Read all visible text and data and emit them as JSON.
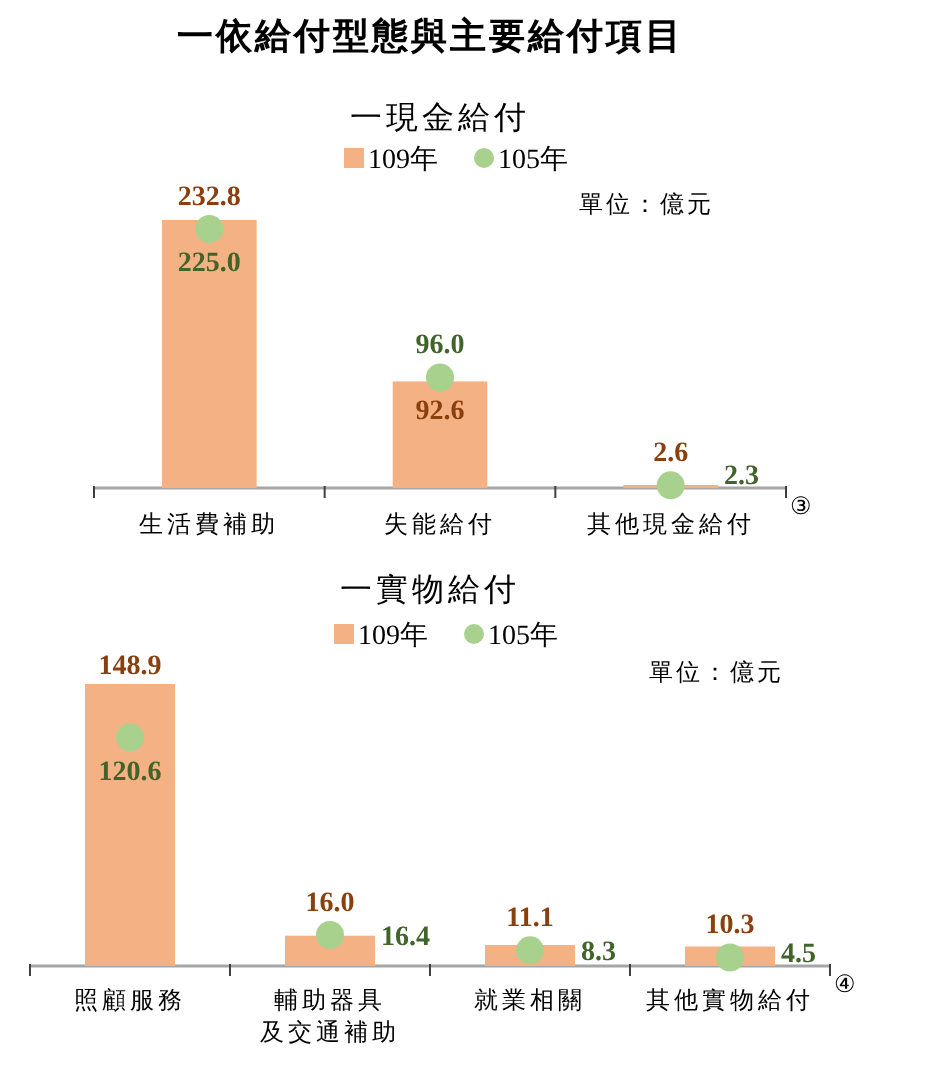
{
  "chart_data": [
    {
      "type": "bar",
      "title": "一依給付型態與主要給付項目",
      "subtitle": "一現金給付",
      "categories": [
        "生活費補助",
        "失能給付",
        "其他現金給付"
      ],
      "series": [
        {
          "name": "109年",
          "type": "bar",
          "color": "#f4b183",
          "values": [
            232.8,
            92.6,
            2.6
          ],
          "value_labels": [
            "232.8",
            "92.6",
            "2.6"
          ]
        },
        {
          "name": "105年",
          "type": "scatter",
          "color": "#a9d18e",
          "values": [
            225.0,
            96.0,
            2.3
          ],
          "value_labels": [
            "225.0",
            "96.0",
            "2.3"
          ]
        }
      ],
      "marker": "circle",
      "legend": "top",
      "tick_labels": "x",
      "annotations": [
        "單位：億元",
        "③"
      ]
    },
    {
      "type": "bar",
      "title": "一實物給付",
      "categories": [
        "照顧服務",
        "輔助器具及交通補助",
        "就業相關",
        "其他實物給付"
      ],
      "series": [
        {
          "name": "109年",
          "type": "bar",
          "color": "#f4b183",
          "values": [
            148.9,
            16.0,
            11.1,
            10.3
          ],
          "value_labels": [
            "148.9",
            "16.0",
            "11.1",
            "10.3"
          ]
        },
        {
          "name": "105年",
          "type": "scatter",
          "color": "#a9d18e",
          "values": [
            120.6,
            16.4,
            8.3,
            4.5
          ],
          "value_labels": [
            "120.6",
            "16.4",
            "8.3",
            "4.5"
          ]
        }
      ],
      "marker": "circle",
      "legend": "top",
      "tick_labels": "x",
      "annotations": [
        "單位：億元",
        "④"
      ]
    }
  ]
}
